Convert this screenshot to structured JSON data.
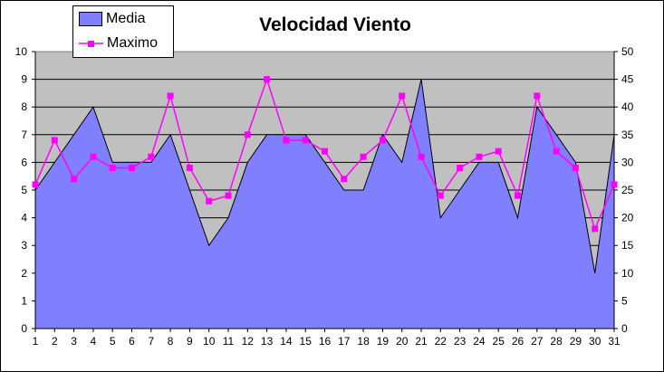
{
  "chart_data": {
    "type": "area",
    "title": "Velocidad Viento",
    "x": [
      1,
      2,
      3,
      4,
      5,
      6,
      7,
      8,
      9,
      10,
      11,
      12,
      13,
      14,
      15,
      16,
      17,
      18,
      19,
      20,
      21,
      22,
      23,
      24,
      25,
      26,
      27,
      28,
      29,
      30,
      31
    ],
    "series": [
      {
        "name": "Media",
        "type": "area",
        "axis": "left",
        "color": "#8080ff",
        "values": [
          5,
          6,
          7,
          8,
          6,
          6,
          6,
          7,
          5,
          3,
          4,
          6,
          7,
          7,
          7,
          6,
          5,
          5,
          7,
          6,
          9,
          4,
          5,
          6,
          6,
          4,
          8,
          7,
          6,
          2,
          7
        ]
      },
      {
        "name": "Maximo",
        "type": "line",
        "axis": "right",
        "color": "#ff00ff",
        "marker": "square",
        "values": [
          26,
          34,
          27,
          31,
          29,
          29,
          31,
          42,
          29,
          23,
          24,
          35,
          45,
          34,
          34,
          32,
          27,
          31,
          34,
          42,
          31,
          24,
          29,
          31,
          32,
          24,
          42,
          32,
          29,
          18,
          26
        ]
      }
    ],
    "y_left": {
      "min": 0,
      "max": 10,
      "ticks": [
        0,
        1,
        2,
        3,
        4,
        5,
        6,
        7,
        8,
        9,
        10
      ]
    },
    "y_right": {
      "min": 0,
      "max": 50,
      "ticks": [
        0,
        5,
        10,
        15,
        20,
        25,
        30,
        35,
        40,
        45,
        50
      ]
    },
    "plot_background": "#c0c0c0",
    "grid": true,
    "legend_position": "top-left"
  }
}
